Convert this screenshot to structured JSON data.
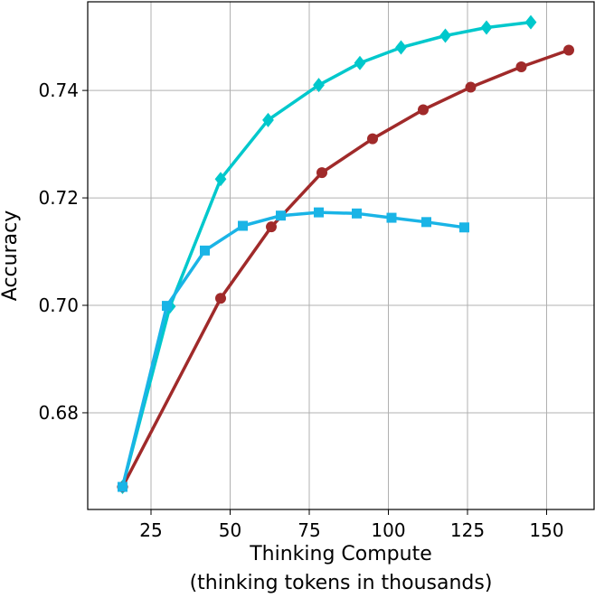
{
  "chart_data": {
    "type": "line",
    "xlabel": "Thinking Compute",
    "xlabel_sub": "(thinking tokens in thousands)",
    "ylabel": "Accuracy",
    "xlim": [
      5,
      165
    ],
    "ylim": [
      0.662,
      0.7565
    ],
    "xticks": [
      25,
      50,
      75,
      100,
      125,
      150
    ],
    "yticks": [
      0.68,
      0.7,
      0.72,
      0.74
    ],
    "xtick_labels": [
      "25",
      "50",
      "75",
      "100",
      "125",
      "150"
    ],
    "ytick_labels": [
      "0.68",
      "0.70",
      "0.72",
      "0.74"
    ],
    "grid": true,
    "series": [
      {
        "color": "#00c8cc",
        "marker": "diamond",
        "x": [
          16,
          31,
          47,
          62,
          78,
          91,
          104,
          118,
          131,
          145
        ],
        "y": [
          0.6662,
          0.6998,
          0.7235,
          0.7345,
          0.741,
          0.7451,
          0.748,
          0.7502,
          0.7517,
          0.7527
        ]
      },
      {
        "color": "#a02a2a",
        "marker": "circle",
        "x": [
          16,
          47,
          63,
          79,
          95,
          111,
          126,
          142,
          157
        ],
        "y": [
          0.6662,
          0.7013,
          0.7146,
          0.7247,
          0.731,
          0.7364,
          0.7406,
          0.7444,
          0.7475
        ]
      },
      {
        "color": "#1ab4e6",
        "marker": "square",
        "x": [
          16,
          30,
          42,
          54,
          66,
          78,
          90,
          101,
          112,
          124
        ],
        "y": [
          0.6662,
          0.6999,
          0.7102,
          0.7148,
          0.7167,
          0.7173,
          0.7171,
          0.7163,
          0.7155,
          0.7145
        ]
      }
    ]
  }
}
